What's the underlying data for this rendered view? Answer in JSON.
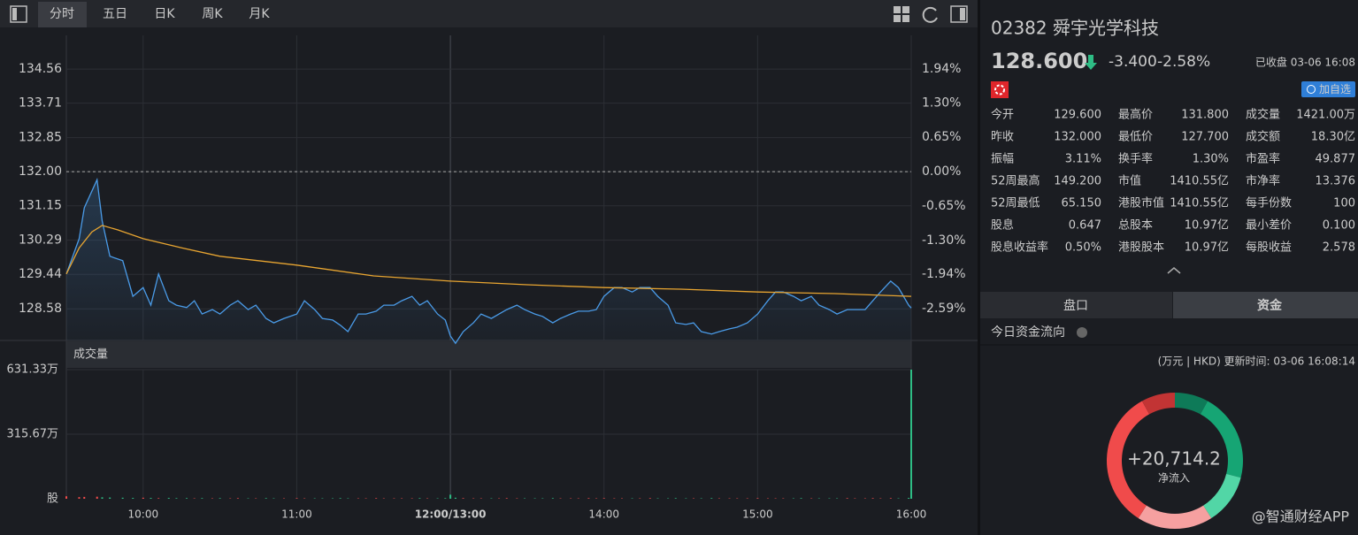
{
  "toolbar": {
    "tabs": [
      "分时",
      "五日",
      "日K",
      "周K",
      "月K"
    ],
    "active": 0
  },
  "chart_data": {
    "type": "line",
    "x": [
      0,
      5,
      7,
      12,
      14,
      17,
      22,
      26,
      30,
      33,
      36,
      40,
      43,
      47,
      50,
      53,
      57,
      60,
      64,
      67,
      71,
      74,
      78,
      81,
      85,
      90,
      93,
      97,
      100,
      104,
      107,
      110,
      114,
      117,
      121,
      124,
      128,
      131,
      135,
      138,
      141,
      145,
      148,
      150,
      152,
      155,
      159,
      162,
      166,
      169,
      172,
      176,
      179,
      183,
      186,
      190,
      193,
      197,
      200,
      204,
      207,
      210,
      214,
      217,
      221,
      224,
      228,
      231,
      235,
      238,
      242,
      245,
      248,
      252,
      255,
      259,
      262,
      266,
      270,
      274,
      277,
      280,
      284,
      287,
      291,
      294,
      298,
      301,
      305,
      308,
      312,
      315,
      318,
      322,
      325,
      329,
      330
    ],
    "series": [
      {
        "color": "#4a9be8",
        "values": [
          129.45,
          130.33,
          131.1,
          131.8,
          130.77,
          129.89,
          129.78,
          128.89,
          129.11,
          128.67,
          129.45,
          128.78,
          128.67,
          128.61,
          128.78,
          128.45,
          128.56,
          128.45,
          128.67,
          128.78,
          128.56,
          128.67,
          128.34,
          128.23,
          128.34,
          128.45,
          128.78,
          128.56,
          128.34,
          128.3,
          128.17,
          128.01,
          128.45,
          128.45,
          128.52,
          128.67,
          128.67,
          128.78,
          128.89,
          128.67,
          128.78,
          128.45,
          128.3,
          127.9,
          127.72,
          128.01,
          128.23,
          128.45,
          128.34,
          128.45,
          128.56,
          128.67,
          128.56,
          128.45,
          128.39,
          128.23,
          128.34,
          128.45,
          128.52,
          128.52,
          128.56,
          128.89,
          129.11,
          129.11,
          129.0,
          129.11,
          129.11,
          128.89,
          128.67,
          128.23,
          128.19,
          128.23,
          128.01,
          127.95,
          128.01,
          128.08,
          128.12,
          128.23,
          128.45,
          128.78,
          129.0,
          129.0,
          128.89,
          128.78,
          128.89,
          128.67,
          128.56,
          128.45,
          128.56,
          128.56,
          128.56,
          128.78,
          129.0,
          129.27,
          129.11,
          128.67,
          128.6
        ]
      },
      {
        "color": "#e8a531",
        "x": [
          0,
          5,
          10,
          14,
          20,
          30,
          45,
          60,
          90,
          120,
          150,
          180,
          210,
          240,
          270,
          300,
          330
        ],
        "values": [
          129.45,
          130.1,
          130.5,
          130.66,
          130.55,
          130.33,
          130.1,
          129.89,
          129.67,
          129.4,
          129.27,
          129.18,
          129.11,
          129.07,
          129.0,
          128.96,
          128.89
        ]
      }
    ],
    "xlim": [
      0,
      330
    ],
    "xticks": [
      {
        "value": 30,
        "label": "10:00"
      },
      {
        "value": 90,
        "label": "11:00"
      },
      {
        "value": 150,
        "label": "12:00/13:00"
      },
      {
        "value": 210,
        "label": "14:00"
      },
      {
        "value": 270,
        "label": "15:00"
      },
      {
        "value": 330,
        "label": "16:00"
      }
    ],
    "ylim": [
      127.79,
      134.96
    ],
    "yticks": [
      134.56,
      133.71,
      132.85,
      {
        "value": 132,
        "label": "132.00"
      },
      131.15,
      130.29,
      129.44,
      128.58
    ],
    "y2lim": [
      -3.19,
      2.24
    ],
    "y2ticks": [
      {
        "value": 1.94,
        "label": "1.94%"
      },
      {
        "value": 1.3,
        "label": "1.30%"
      },
      {
        "value": 0.65,
        "label": "0.65%"
      },
      {
        "value": 0,
        "label": "0.00%"
      },
      {
        "value": -0.65,
        "label": "-0.65%"
      },
      {
        "value": -1.3,
        "label": "-1.30%"
      },
      {
        "value": -1.94,
        "label": "-1.94%"
      },
      {
        "value": -2.59,
        "label": "-2.59%"
      }
    ],
    "reference_line": 132,
    "grid": true,
    "volume": {
      "label": "成交量",
      "values": [
        12,
        8,
        9,
        10,
        7,
        6,
        5,
        4,
        5,
        4,
        3,
        4,
        3,
        3,
        2,
        3,
        2,
        3,
        2,
        3,
        2,
        2,
        3,
        2,
        2,
        3,
        2,
        2,
        2,
        2,
        3,
        2,
        2,
        2,
        3,
        2,
        2,
        2,
        2,
        3,
        2,
        2,
        3,
        20,
        5,
        3,
        2,
        2,
        2,
        2,
        3,
        2,
        2,
        2,
        2,
        3,
        2,
        2,
        2,
        3,
        2,
        3,
        2,
        2,
        2,
        2,
        3,
        2,
        2,
        3,
        2,
        2,
        2,
        3,
        2,
        2,
        2,
        2,
        3,
        2,
        2,
        2,
        2,
        3,
        2,
        2,
        2,
        2,
        3,
        2,
        2,
        3,
        2,
        3,
        2,
        4,
        631.33
      ],
      "ylim": [
        0,
        631.33
      ],
      "yticks": [
        {
          "value": 631.33,
          "label": "631.33万"
        },
        {
          "value": 315.67,
          "label": "315.67万"
        },
        {
          "value": 0,
          "label": "股"
        }
      ]
    }
  },
  "quote": {
    "title": "02382 舜宇光学科技",
    "price": "128.600",
    "change": "-3.400",
    "change_pct": "-2.58%",
    "status": "已收盘 03-06 16:08",
    "add_button": "加自选"
  },
  "stats": {
    "rows": [
      [
        {
          "label": "今开",
          "value": "129.600",
          "color": "#2ebd85"
        },
        {
          "label": "最高价",
          "value": "131.800",
          "color": "#2ebd85"
        },
        {
          "label": "成交量",
          "value": "1421.00万"
        }
      ],
      [
        {
          "label": "昨收",
          "value": "132.000"
        },
        {
          "label": "最低价",
          "value": "127.700",
          "color": "#2ebd85"
        },
        {
          "label": "成交额",
          "value": "18.30亿"
        }
      ],
      [
        {
          "label": "振幅",
          "value": "3.11%"
        },
        {
          "label": "换手率",
          "value": "1.30%"
        },
        {
          "label": "市盈率",
          "value": "49.877"
        }
      ],
      [
        {
          "label": "52周最高",
          "value": "149.200"
        },
        {
          "label": "市值",
          "value": "1410.55亿"
        },
        {
          "label": "市净率",
          "value": "13.376"
        }
      ],
      [
        {
          "label": "52周最低",
          "value": "65.150"
        },
        {
          "label": "港股市值",
          "value": "1410.55亿"
        },
        {
          "label": "每手份数",
          "value": "100"
        }
      ],
      [
        {
          "label": "股息",
          "value": "0.647"
        },
        {
          "label": "总股本",
          "value": "10.97亿"
        },
        {
          "label": "最小差价",
          "value": "0.100"
        }
      ],
      [
        {
          "label": "股息收益率",
          "value": "0.50%"
        },
        {
          "label": "港股股本",
          "value": "10.97亿"
        },
        {
          "label": "每股收益",
          "value": "2.578"
        }
      ]
    ]
  },
  "tabs": [
    "盘口",
    "资金"
  ],
  "fund_flow": {
    "title": "今日资金流向",
    "note": "(万元 | HKD) 更新时间: 03-06 16:08:14",
    "net": "+20,714.2",
    "net_label": "净流入",
    "donut": {
      "values": [
        8,
        21,
        12,
        18,
        33,
        8
      ],
      "colors": [
        "#0e7a58",
        "#16a574",
        "#52d6a6",
        "#f5a0a0",
        "#f04b4b",
        "#c23434"
      ]
    }
  },
  "watermark": "@智通财经APP"
}
